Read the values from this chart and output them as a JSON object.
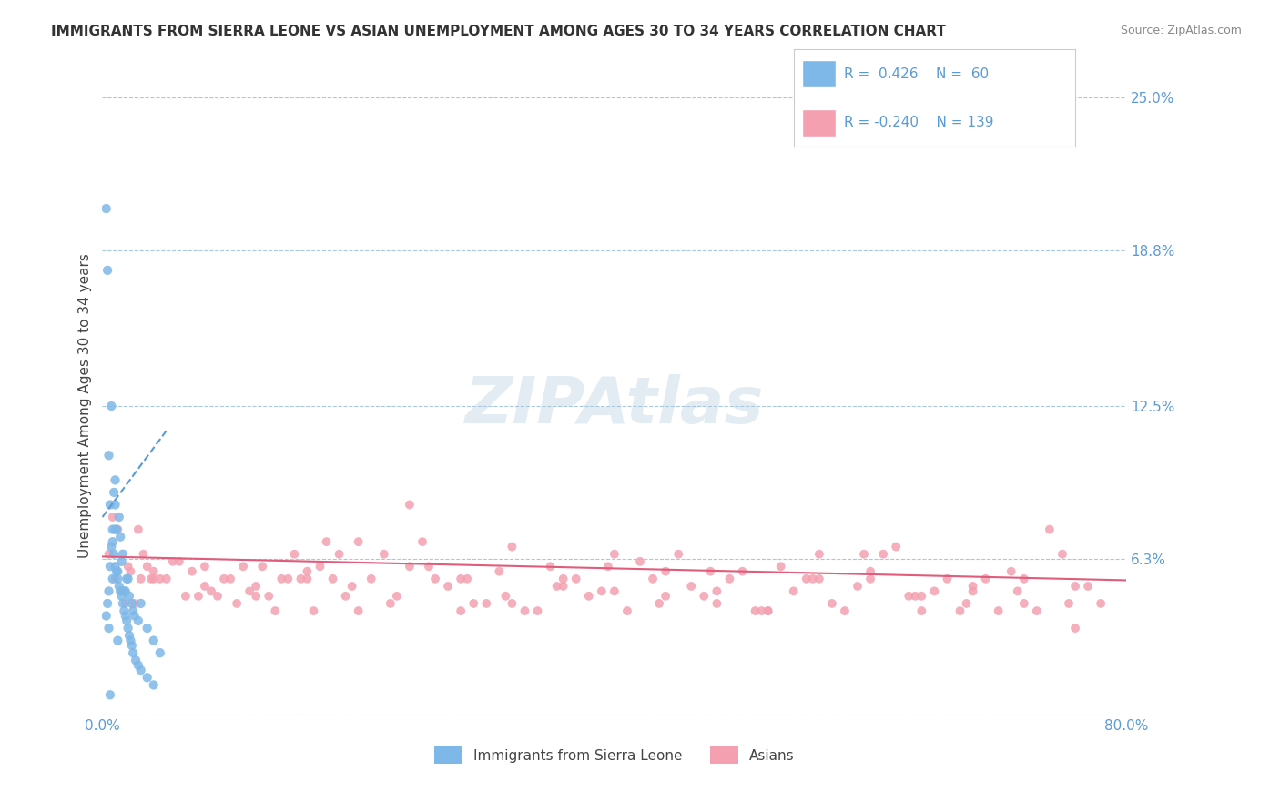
{
  "title": "IMMIGRANTS FROM SIERRA LEONE VS ASIAN UNEMPLOYMENT AMONG AGES 30 TO 34 YEARS CORRELATION CHART",
  "source": "Source: ZipAtlas.com",
  "xlabel_bottom": "",
  "ylabel": "Unemployment Among Ages 30 to 34 years",
  "x_min": 0.0,
  "x_max": 80.0,
  "y_min": 0.0,
  "y_max": 25.0,
  "x_ticks": [
    0.0,
    10.0,
    20.0,
    30.0,
    40.0,
    50.0,
    60.0,
    70.0,
    80.0
  ],
  "x_tick_labels": [
    "0.0%",
    "",
    "",
    "",
    "",
    "",
    "",
    "",
    "80.0%"
  ],
  "y_ticks": [
    0.0,
    6.3,
    12.5,
    18.8,
    25.0
  ],
  "y_tick_labels": [
    "",
    "6.3%",
    "12.5%",
    "18.8%",
    "25.0%"
  ],
  "legend_label_1": "Immigrants from Sierra Leone",
  "legend_label_2": "Asians",
  "legend_r1": "R =  0.426",
  "legend_n1": "N =  60",
  "legend_r2": "R = -0.240",
  "legend_n2": "N = 139",
  "scatter_color_1": "#7EB8E8",
  "scatter_color_2": "#F4A0B0",
  "trend_color_1": "#5B9BD5",
  "trend_color_2": "#E05C7A",
  "watermark": "ZIPAtlas",
  "watermark_color": "#C8D8E8",
  "background_color": "#FFFFFF",
  "blue_r": 0.426,
  "blue_n": 60,
  "pink_r": -0.24,
  "pink_n": 139,
  "blue_scatter_x": [
    0.3,
    0.4,
    0.5,
    0.6,
    0.8,
    0.9,
    1.0,
    1.1,
    1.2,
    1.3,
    1.4,
    1.5,
    1.6,
    1.7,
    1.8,
    1.9,
    2.0,
    2.1,
    2.2,
    2.3,
    2.4,
    2.6,
    2.8,
    3.0,
    3.5,
    4.0,
    1.0,
    0.7,
    0.5,
    0.4,
    0.3,
    0.6,
    0.8,
    1.2,
    1.5,
    1.8,
    2.0,
    2.5,
    3.0,
    3.5,
    4.0,
    4.5,
    1.0,
    0.9,
    0.8,
    1.1,
    1.3,
    1.6,
    2.1,
    2.4,
    0.5,
    0.7,
    1.0,
    1.4,
    1.9,
    2.3,
    2.8,
    0.6,
    1.2,
    1.7
  ],
  "blue_scatter_y": [
    20.5,
    18.0,
    10.5,
    8.5,
    7.5,
    6.5,
    6.0,
    5.8,
    5.5,
    5.2,
    5.0,
    4.8,
    4.5,
    4.2,
    4.0,
    3.8,
    3.5,
    3.2,
    3.0,
    2.8,
    2.5,
    2.2,
    2.0,
    1.8,
    1.5,
    1.2,
    7.5,
    12.5,
    5.0,
    4.5,
    4.0,
    6.0,
    5.5,
    5.8,
    6.2,
    5.0,
    5.5,
    4.0,
    4.5,
    3.5,
    3.0,
    2.5,
    9.5,
    9.0,
    7.0,
    7.5,
    8.0,
    6.5,
    4.8,
    4.2,
    3.5,
    6.8,
    8.5,
    7.2,
    5.5,
    4.5,
    3.8,
    0.8,
    3.0,
    5.0
  ],
  "pink_scatter_x": [
    0.5,
    1.0,
    1.5,
    2.0,
    2.5,
    3.0,
    3.5,
    4.0,
    5.0,
    6.0,
    7.0,
    8.0,
    9.0,
    10.0,
    11.0,
    12.0,
    13.0,
    14.0,
    15.0,
    16.0,
    17.0,
    18.0,
    19.0,
    20.0,
    22.0,
    24.0,
    26.0,
    28.0,
    30.0,
    32.0,
    34.0,
    36.0,
    38.0,
    40.0,
    42.0,
    44.0,
    46.0,
    48.0,
    50.0,
    52.0,
    54.0,
    56.0,
    58.0,
    60.0,
    62.0,
    64.0,
    66.0,
    68.0,
    70.0,
    72.0,
    74.0,
    76.0,
    78.0,
    1.2,
    2.2,
    3.2,
    4.5,
    6.5,
    8.5,
    10.5,
    12.5,
    14.5,
    16.5,
    18.5,
    21.0,
    23.0,
    25.0,
    27.0,
    29.0,
    31.0,
    33.0,
    35.0,
    37.0,
    39.0,
    41.0,
    43.0,
    45.0,
    47.0,
    49.0,
    51.0,
    53.0,
    55.0,
    57.0,
    59.0,
    61.0,
    63.0,
    65.0,
    67.0,
    69.0,
    71.0,
    73.0,
    75.0,
    77.0,
    0.8,
    1.8,
    2.8,
    3.8,
    5.5,
    7.5,
    9.5,
    11.5,
    13.5,
    15.5,
    17.5,
    19.5,
    22.5,
    25.5,
    28.5,
    31.5,
    35.5,
    39.5,
    43.5,
    47.5,
    51.5,
    55.5,
    59.5,
    63.5,
    67.5,
    71.5,
    75.5,
    4.0,
    8.0,
    12.0,
    16.0,
    20.0,
    24.0,
    28.0,
    32.0,
    36.0,
    40.0,
    44.0,
    48.0,
    52.0,
    56.0,
    60.0,
    64.0,
    68.0,
    72.0,
    76.0
  ],
  "pink_scatter_y": [
    6.5,
    5.5,
    5.0,
    6.0,
    4.5,
    5.5,
    6.0,
    5.8,
    5.5,
    6.2,
    5.8,
    5.2,
    4.8,
    5.5,
    6.0,
    5.2,
    4.8,
    5.5,
    6.5,
    5.8,
    6.0,
    5.5,
    4.8,
    7.0,
    6.5,
    8.5,
    5.5,
    4.2,
    4.5,
    6.8,
    4.2,
    5.5,
    4.8,
    5.0,
    6.2,
    5.8,
    5.2,
    4.5,
    5.8,
    4.2,
    5.0,
    6.5,
    4.2,
    5.5,
    6.8,
    4.8,
    5.5,
    5.0,
    4.2,
    5.5,
    7.5,
    5.2,
    4.5,
    7.5,
    5.8,
    6.5,
    5.5,
    4.8,
    5.0,
    4.5,
    6.0,
    5.5,
    4.2,
    6.5,
    5.5,
    4.8,
    7.0,
    5.2,
    4.5,
    5.8,
    4.2,
    6.0,
    5.5,
    5.0,
    4.2,
    5.5,
    6.5,
    4.8,
    5.5,
    4.2,
    6.0,
    5.5,
    4.5,
    5.2,
    6.5,
    4.8,
    5.0,
    4.2,
    5.5,
    5.8,
    4.2,
    6.5,
    5.2,
    8.0,
    4.5,
    7.5,
    5.5,
    6.2,
    4.8,
    5.5,
    5.0,
    4.2,
    5.5,
    7.0,
    5.2,
    4.5,
    6.0,
    5.5,
    4.8,
    5.2,
    6.0,
    4.5,
    5.8,
    4.2,
    5.5,
    6.5,
    4.8,
    4.5,
    5.0,
    4.5,
    5.5,
    6.0,
    4.8,
    5.5,
    4.2,
    6.0,
    5.5,
    4.5,
    5.2,
    6.5,
    4.8,
    5.0,
    4.2,
    5.5,
    5.8,
    4.2,
    5.2,
    4.5,
    3.5
  ]
}
